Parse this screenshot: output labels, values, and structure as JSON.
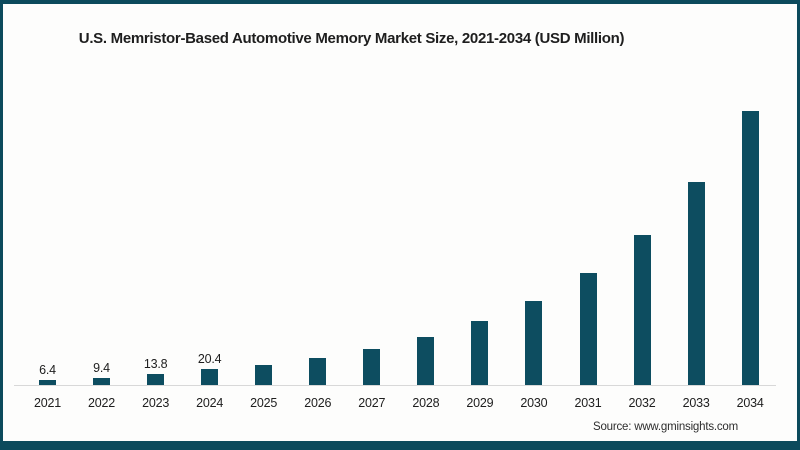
{
  "colors": {
    "bar": "#0d4d60",
    "frame_border": "#0c4a5c",
    "axis_line": "#d8d8d8",
    "background": "#fdfdfc",
    "text": "#1e1e1e"
  },
  "chart_data": {
    "type": "bar",
    "title": "U.S. Memristor-Based Automotive Memory Market Size, 2021-2034 (USD Million)",
    "unit": "USD Million",
    "categories": [
      "2021",
      "2022",
      "2023",
      "2024",
      "2025",
      "2026",
      "2027",
      "2028",
      "2029",
      "2030",
      "2031",
      "2032",
      "2033",
      "2034"
    ],
    "values": [
      6.4,
      9.4,
      13.8,
      20.4,
      26,
      34.5,
      46,
      61,
      81.5,
      108,
      143.5,
      192,
      259,
      351
    ],
    "data_labels": [
      "6.4",
      "9.4",
      "13.8",
      "20.4",
      "",
      "",
      "",
      "",
      "",
      "",
      "",
      "",
      "",
      ""
    ],
    "xlabel": "",
    "ylabel": "",
    "ylim": [
      0,
      360
    ],
    "grid": false,
    "legend": false,
    "source": "Source: www.gminsights.com"
  }
}
